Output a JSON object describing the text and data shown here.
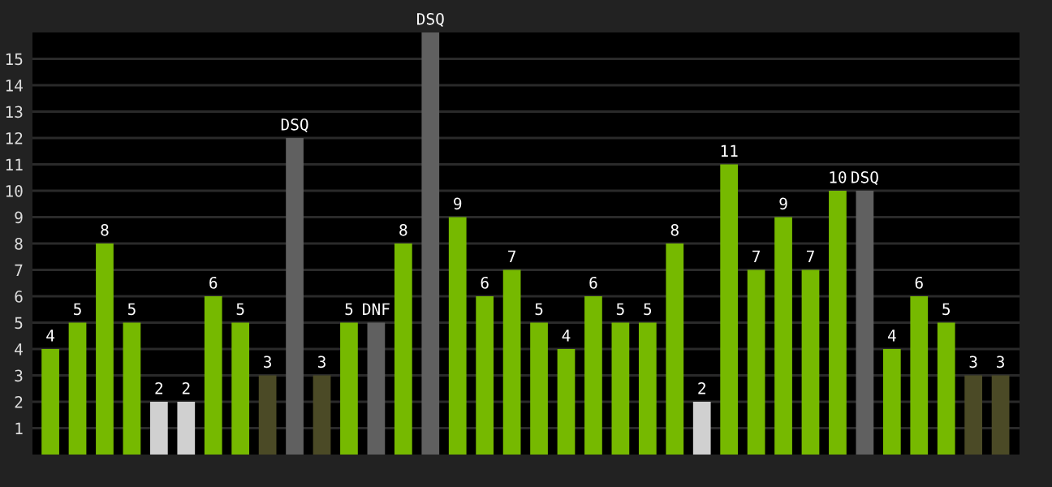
{
  "chart_data": {
    "type": "bar",
    "categories": [
      null,
      null,
      null,
      null,
      null,
      null,
      null,
      null,
      null,
      null,
      null,
      null,
      null,
      null,
      null,
      null,
      null,
      null,
      null,
      null,
      null,
      null,
      null,
      null,
      null,
      null,
      null,
      null,
      null,
      null,
      null,
      null,
      null,
      null,
      null,
      null
    ],
    "values": [
      4,
      5,
      8,
      5,
      2,
      2,
      6,
      5,
      3,
      12,
      3,
      5,
      5,
      8,
      16,
      9,
      6,
      7,
      5,
      4,
      6,
      5,
      5,
      8,
      2,
      11,
      7,
      9,
      7,
      10,
      10,
      4,
      6,
      5,
      3,
      3
    ],
    "colors": [
      "#76b900",
      "#76b900",
      "#76b900",
      "#76b900",
      "#d0d0d0",
      "#d0d0d0",
      "#76b900",
      "#76b900",
      "#4b4a26",
      "#606060",
      "#4b4a26",
      "#76b900",
      "#606060",
      "#76b900",
      "#606060",
      "#76b900",
      "#76b900",
      "#76b900",
      "#76b900",
      "#76b900",
      "#76b900",
      "#76b900",
      "#76b900",
      "#76b900",
      "#d0d0d0",
      "#76b900",
      "#76b900",
      "#76b900",
      "#76b900",
      "#76b900",
      "#606060",
      "#76b900",
      "#76b900",
      "#76b900",
      "#4b4a26",
      "#4b4a26"
    ],
    "value_labels": [
      "4",
      "5",
      "8",
      "5",
      "2",
      "2",
      "6",
      "5",
      "3",
      "DSQ",
      "3",
      "5",
      "DNF",
      "8",
      "DSQ",
      "9",
      "6",
      "7",
      "5",
      "4",
      "6",
      "5",
      "5",
      "8",
      "2",
      "11",
      "7",
      "9",
      "7",
      "10",
      "DSQ",
      "4",
      "6",
      "5",
      "3",
      "3"
    ],
    "ylim": [
      0,
      16
    ],
    "yticks": [
      1,
      2,
      3,
      4,
      5,
      6,
      7,
      8,
      9,
      10,
      11,
      12,
      13,
      14,
      15
    ],
    "grid": "y",
    "tick_labels": "y"
  }
}
